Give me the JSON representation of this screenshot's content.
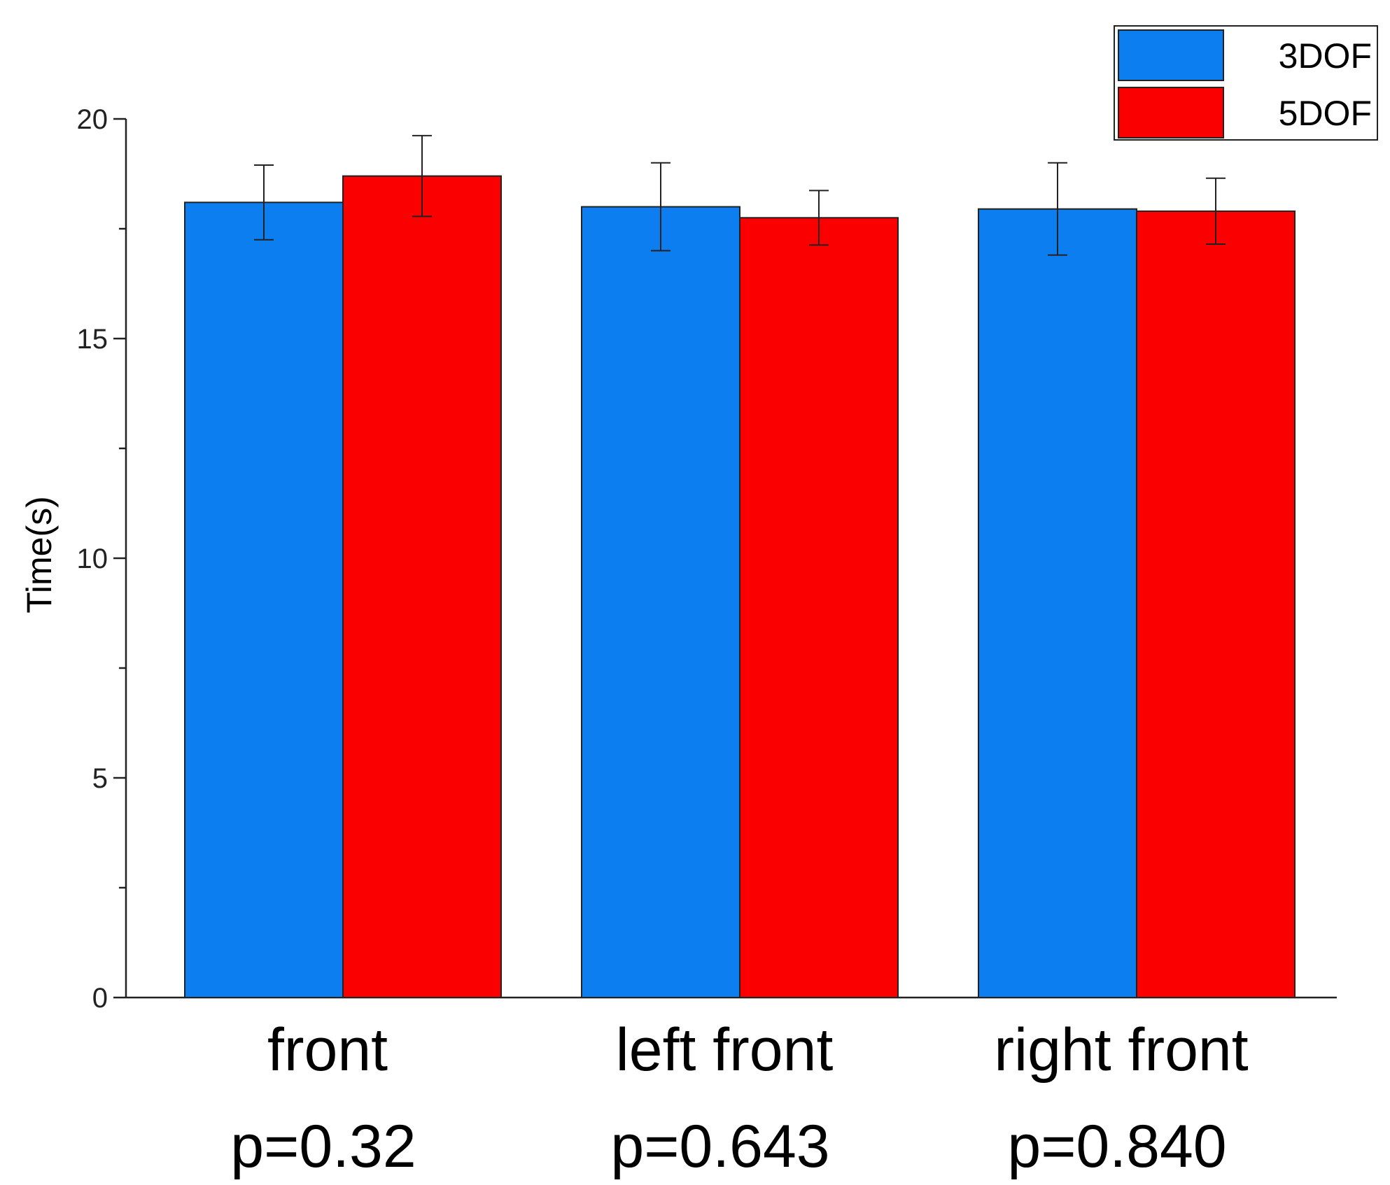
{
  "chart_data": {
    "type": "bar",
    "title": "",
    "xlabel": "",
    "ylabel": "Time(s)",
    "ylim": [
      0,
      20
    ],
    "yticks": [
      0,
      5,
      10,
      15,
      20
    ],
    "yticks_labeled": [
      0,
      5,
      10,
      15,
      20
    ],
    "categories": [
      "front",
      "left front",
      "right front"
    ],
    "annotations": [
      "p=0.32",
      "p=0.643",
      "p=0.840"
    ],
    "series": [
      {
        "name": "3DOF",
        "color": "#0d7ef0",
        "values": [
          18.1,
          18.0,
          17.95
        ],
        "errors": [
          0.85,
          1.0,
          1.05
        ]
      },
      {
        "name": "5DOF",
        "color": "#fb0000",
        "values": [
          18.7,
          17.75,
          17.9
        ],
        "errors": [
          0.92,
          0.62,
          0.75
        ]
      }
    ],
    "legend_position": "top-right",
    "grid": false
  }
}
